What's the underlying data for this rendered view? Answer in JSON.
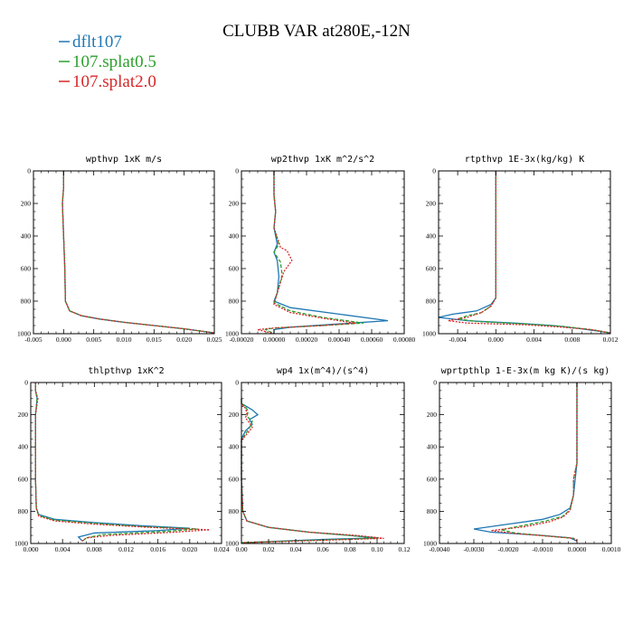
{
  "figure": {
    "title": "CLUBB VAR at280E,-12N"
  },
  "colors": {
    "dflt107": "#1f77b4",
    "splat05": "#2ca02c",
    "splat20": "#d62728",
    "axis": "#000000"
  },
  "legend": [
    {
      "name": "dflt107",
      "color": "#1f77b4",
      "dash": "solid"
    },
    {
      "name": "107.splat0.5",
      "color": "#2ca02c",
      "dash": "dashed"
    },
    {
      "name": "107.splat2.0",
      "color": "#d62728",
      "dash": "dotted"
    }
  ],
  "chart_data": [
    {
      "type": "line",
      "title": "wpthvp  1xK m/s",
      "xlim": [
        -0.005,
        0.025
      ],
      "ylim": [
        0,
        1000
      ],
      "y_inverted": true,
      "xticks": [
        -0.005,
        0.0,
        0.005,
        0.01,
        0.015,
        0.02,
        0.025
      ],
      "xtick_labels": [
        "-0.005",
        "0.000",
        "0.005",
        "0.010",
        "0.015",
        "0.020",
        "0.025"
      ],
      "yticks": [
        0,
        200,
        400,
        600,
        800,
        1000
      ],
      "ytick_labels": [
        "0",
        "200",
        "400",
        "600",
        "800",
        "1000"
      ],
      "series": [
        {
          "name": "dflt107",
          "x": [
            0.0,
            0.0,
            -0.0002,
            -0.0001,
            0.0,
            0.0001,
            0.0002,
            0.0003,
            0.001,
            0.003,
            0.006,
            0.01,
            0.015,
            0.02,
            0.025
          ],
          "y": [
            0,
            100,
            200,
            300,
            400,
            500,
            600,
            800,
            860,
            890,
            910,
            930,
            950,
            970,
            995
          ]
        },
        {
          "name": "107.splat0.5",
          "x": [
            0.0,
            0.0,
            -0.0002,
            -0.0001,
            0.0,
            0.0001,
            0.0002,
            0.0003,
            0.001,
            0.003,
            0.006,
            0.01,
            0.015,
            0.02,
            0.025
          ],
          "y": [
            0,
            100,
            200,
            300,
            400,
            500,
            600,
            800,
            860,
            890,
            910,
            930,
            950,
            970,
            995
          ]
        },
        {
          "name": "107.splat2.0",
          "x": [
            0.0,
            0.0,
            -0.0002,
            -0.0001,
            0.0,
            0.0001,
            0.0002,
            0.0003,
            0.001,
            0.003,
            0.006,
            0.01,
            0.015,
            0.02,
            0.025
          ],
          "y": [
            0,
            100,
            200,
            300,
            400,
            500,
            600,
            800,
            860,
            890,
            910,
            930,
            950,
            970,
            995
          ]
        }
      ]
    },
    {
      "type": "line",
      "title": "wp2thvp  1xK m^2/s^2",
      "xlim": [
        -0.0002,
        0.0008
      ],
      "ylim": [
        0,
        1000
      ],
      "y_inverted": true,
      "xticks": [
        -0.0002,
        0.0,
        0.0002,
        0.0004,
        0.0006,
        0.0008
      ],
      "xtick_labels": [
        "-0.00020",
        "0.00000",
        "0.00020",
        "0.00040",
        "0.00060",
        "0.00080"
      ],
      "yticks": [
        0,
        200,
        400,
        600,
        800,
        1000
      ],
      "ytick_labels": [
        "0",
        "200",
        "400",
        "600",
        "800",
        "1000"
      ],
      "series": [
        {
          "name": "dflt107",
          "x": [
            0.0,
            0.0,
            1e-05,
            0.0,
            2e-05,
            0.0,
            2e-05,
            3e-05,
            2e-05,
            0.0,
            0.0001,
            0.0004,
            0.0007,
            0.0004,
            0.0001,
            0.0,
            0.0
          ],
          "y": [
            0,
            150,
            250,
            350,
            450,
            500,
            550,
            650,
            750,
            800,
            840,
            880,
            920,
            940,
            960,
            975,
            1000
          ]
        },
        {
          "name": "107.splat0.5",
          "x": [
            0.0,
            0.0,
            1e-05,
            0.0,
            3e-05,
            0.0,
            4e-05,
            5e-05,
            2e-05,
            0.0,
            0.0001,
            0.0003,
            0.00055,
            0.0003,
            0.0,
            -5e-05,
            0.0
          ],
          "y": [
            0,
            150,
            250,
            350,
            450,
            500,
            560,
            640,
            750,
            810,
            860,
            900,
            935,
            950,
            965,
            975,
            1000
          ]
        },
        {
          "name": "107.splat2.0",
          "x": [
            0.0,
            0.0,
            1e-05,
            0.0,
            4e-05,
            8e-05,
            0.00011,
            6e-05,
            2e-05,
            0.0,
            0.0001,
            0.0003,
            0.0005,
            0.0003,
            0.0,
            -0.0001,
            0.0
          ],
          "y": [
            0,
            150,
            250,
            350,
            470,
            490,
            550,
            620,
            750,
            820,
            870,
            905,
            935,
            950,
            965,
            975,
            1000
          ]
        }
      ]
    },
    {
      "type": "line",
      "title": "rtpthvp  1E-3x(kg/kg) K",
      "xlim": [
        -0.006,
        0.012
      ],
      "ylim": [
        0,
        1000
      ],
      "y_inverted": true,
      "xticks": [
        -0.004,
        0.0,
        0.004,
        0.008,
        0.012
      ],
      "xtick_labels": [
        "-0.004",
        "0.000",
        "0.004",
        "0.008",
        "0.012"
      ],
      "yticks": [
        0,
        200,
        400,
        600,
        800,
        1000
      ],
      "ytick_labels": [
        "0",
        "200",
        "400",
        "600",
        "800",
        "1000"
      ],
      "series": [
        {
          "name": "dflt107",
          "x": [
            0.0,
            0.0,
            0.0,
            0.0,
            0.0,
            -0.0005,
            -0.002,
            -0.0045,
            -0.006,
            -0.003,
            0.002,
            0.006,
            0.009,
            0.012
          ],
          "y": [
            0,
            200,
            400,
            600,
            780,
            820,
            860,
            880,
            900,
            920,
            935,
            950,
            970,
            995
          ]
        },
        {
          "name": "107.splat0.5",
          "x": [
            0.0,
            0.0,
            0.0,
            0.0,
            0.0,
            -0.0005,
            -0.0015,
            -0.003,
            -0.004,
            -0.002,
            0.003,
            0.007,
            0.01,
            0.012
          ],
          "y": [
            0,
            200,
            400,
            600,
            780,
            830,
            870,
            890,
            910,
            925,
            940,
            955,
            975,
            995
          ]
        },
        {
          "name": "107.splat2.0",
          "x": [
            0.0,
            0.0,
            0.0,
            0.0,
            0.0,
            -0.0005,
            -0.0015,
            -0.003,
            -0.005,
            -0.003,
            0.003,
            0.007,
            0.01,
            0.012
          ],
          "y": [
            0,
            200,
            400,
            600,
            780,
            830,
            870,
            900,
            920,
            935,
            945,
            960,
            975,
            995
          ]
        }
      ]
    },
    {
      "type": "line",
      "title": "thlpthvp  1xK^2",
      "xlim": [
        0.0,
        0.024
      ],
      "ylim": [
        0,
        1000
      ],
      "y_inverted": true,
      "xticks": [
        0.0,
        0.004,
        0.008,
        0.012,
        0.016,
        0.02,
        0.024
      ],
      "xtick_labels": [
        "0.000",
        "0.004",
        "0.008",
        "0.012",
        "0.016",
        "0.020",
        "0.024"
      ],
      "yticks": [
        0,
        200,
        400,
        600,
        800,
        1000
      ],
      "ytick_labels": [
        "0",
        "200",
        "400",
        "600",
        "800",
        "1000"
      ],
      "series": [
        {
          "name": "dflt107",
          "x": [
            0.0006,
            0.0006,
            0.0008,
            0.0006,
            0.0006,
            0.0006,
            0.0007,
            0.001,
            0.003,
            0.008,
            0.014,
            0.02,
            0.016,
            0.008,
            0.006,
            0.0065
          ],
          "y": [
            0,
            50,
            100,
            200,
            400,
            600,
            780,
            820,
            850,
            870,
            890,
            905,
            920,
            935,
            960,
            985
          ]
        },
        {
          "name": "107.splat0.5",
          "x": [
            0.0006,
            0.0006,
            0.0008,
            0.0006,
            0.0006,
            0.0006,
            0.0007,
            0.001,
            0.003,
            0.008,
            0.014,
            0.021,
            0.017,
            0.009,
            0.007,
            0.0065
          ],
          "y": [
            0,
            50,
            100,
            200,
            400,
            600,
            780,
            825,
            855,
            875,
            895,
            910,
            925,
            945,
            965,
            985
          ]
        },
        {
          "name": "107.splat2.0",
          "x": [
            0.0006,
            0.0006,
            0.0009,
            0.0006,
            0.0006,
            0.0006,
            0.0007,
            0.001,
            0.003,
            0.008,
            0.015,
            0.0225,
            0.018,
            0.01,
            0.007,
            0.0065
          ],
          "y": [
            0,
            50,
            100,
            200,
            400,
            600,
            780,
            830,
            860,
            880,
            900,
            915,
            930,
            950,
            965,
            985
          ]
        }
      ]
    },
    {
      "type": "line",
      "title": "wp4  1x(m^4)/(s^4)",
      "xlim": [
        0.0,
        0.12
      ],
      "ylim": [
        0,
        1000
      ],
      "y_inverted": true,
      "xticks": [
        0.0,
        0.02,
        0.04,
        0.06,
        0.08,
        0.1,
        0.12
      ],
      "xtick_labels": [
        "0.00",
        "0.02",
        "0.04",
        "0.06",
        "0.08",
        "0.10",
        "0.12"
      ],
      "yticks": [
        0,
        200,
        400,
        600,
        800,
        1000
      ],
      "ytick_labels": [
        "0",
        "200",
        "400",
        "600",
        "800",
        "1000"
      ],
      "series": [
        {
          "name": "dflt107",
          "x": [
            0.0,
            0.0,
            0.004,
            0.008,
            0.012,
            0.006,
            0.008,
            0.003,
            0.0,
            0.0,
            0.0,
            0.001,
            0.004,
            0.02,
            0.05,
            0.08,
            0.1,
            0.06,
            0.0
          ],
          "y": [
            100,
            130,
            150,
            170,
            200,
            230,
            260,
            300,
            350,
            400,
            600,
            800,
            860,
            900,
            930,
            950,
            965,
            975,
            995
          ]
        },
        {
          "name": "107.splat0.5",
          "x": [
            0.0,
            0.0,
            0.003,
            0.005,
            0.004,
            0.008,
            0.006,
            0.003,
            0.0,
            0.0,
            0.0,
            0.001,
            0.004,
            0.02,
            0.05,
            0.08,
            0.1,
            0.06,
            0.0
          ],
          "y": [
            100,
            130,
            150,
            180,
            210,
            240,
            280,
            320,
            360,
            400,
            600,
            800,
            860,
            900,
            930,
            950,
            968,
            978,
            995
          ]
        },
        {
          "name": "107.splat2.0",
          "x": [
            0.0,
            0.0,
            0.003,
            0.004,
            0.003,
            0.006,
            0.008,
            0.004,
            0.0,
            0.0,
            0.0,
            0.001,
            0.004,
            0.02,
            0.05,
            0.085,
            0.105,
            0.06,
            0.0
          ],
          "y": [
            100,
            130,
            160,
            190,
            220,
            250,
            280,
            320,
            360,
            400,
            600,
            800,
            860,
            900,
            930,
            950,
            968,
            980,
            995
          ]
        }
      ]
    },
    {
      "type": "line",
      "title": "wprtpthlp  1-E-3x(m kg K)/(s kg)",
      "xlim": [
        -0.004,
        0.001
      ],
      "ylim": [
        0,
        1000
      ],
      "y_inverted": true,
      "xticks": [
        -0.004,
        -0.003,
        -0.002,
        -0.001,
        0.0,
        0.001
      ],
      "xtick_labels": [
        "-0.0040",
        "-0.0030",
        "-0.0020",
        "-0.0010",
        "0.0000",
        "0.0010"
      ],
      "yticks": [
        0,
        200,
        400,
        600,
        800,
        1000
      ],
      "ytick_labels": [
        "0",
        "200",
        "400",
        "600",
        "800",
        "1000"
      ],
      "series": [
        {
          "name": "dflt107",
          "x": [
            0.0,
            0.0,
            0.0,
            -5e-05,
            -0.0001,
            -0.0002,
            -0.0005,
            -0.001,
            -0.002,
            -0.003,
            -0.0025,
            -0.001,
            -0.0002,
            0.0
          ],
          "y": [
            0,
            300,
            500,
            600,
            700,
            780,
            820,
            850,
            880,
            910,
            930,
            950,
            965,
            985
          ]
        },
        {
          "name": "107.splat0.5",
          "x": [
            0.0,
            0.0,
            0.0,
            -0.0001,
            -0.0001,
            -0.0002,
            -0.0004,
            -0.0009,
            -0.0016,
            -0.0022,
            -0.0018,
            -0.0008,
            -0.0001,
            0.0
          ],
          "y": [
            0,
            300,
            500,
            600,
            700,
            790,
            830,
            860,
            890,
            915,
            935,
            955,
            968,
            985
          ]
        },
        {
          "name": "107.splat2.0",
          "x": [
            0.0,
            0.0,
            0.0,
            -0.0001,
            -0.0001,
            -0.0002,
            -0.0004,
            -0.0008,
            -0.0015,
            -0.0025,
            -0.0018,
            -0.0008,
            -0.0001,
            0.0
          ],
          "y": [
            0,
            300,
            500,
            600,
            700,
            795,
            835,
            865,
            895,
            920,
            938,
            955,
            968,
            985
          ]
        }
      ]
    }
  ]
}
